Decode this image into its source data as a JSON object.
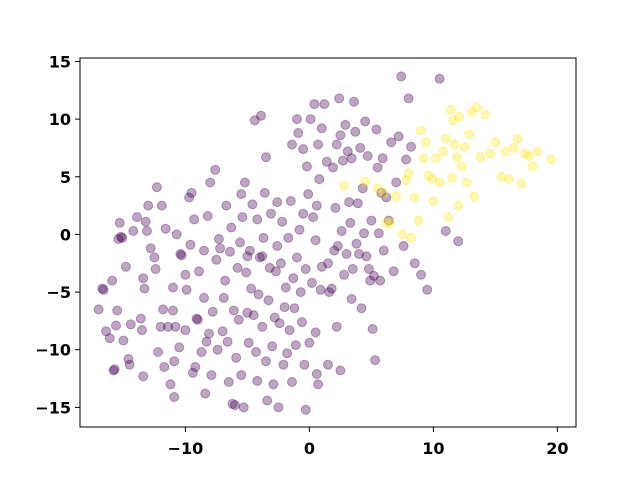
{
  "chart_data": {
    "type": "scatter",
    "title": "",
    "xlabel": "",
    "ylabel": "",
    "xlim": [
      -18.5,
      21.5
    ],
    "ylim": [
      -16.7,
      15.3
    ],
    "x_ticks": [
      -10,
      0,
      10,
      20
    ],
    "x_tick_labels": [
      "−10",
      "0",
      "10",
      "20"
    ],
    "y_ticks": [
      -15,
      -10,
      -5,
      0,
      5,
      10,
      15
    ],
    "y_tick_labels": [
      "−15",
      "−10",
      "−5",
      "0",
      "5",
      "10",
      "15"
    ],
    "grid": false,
    "legend": "none",
    "marker_alpha": 0.35,
    "colors": {
      "series_0": "#440154",
      "series_1": "#fde725",
      "axis": "#000000",
      "background": "#ffffff"
    },
    "series": [
      {
        "color": "#440154",
        "points": [
          [
            -17,
            -6.5
          ],
          [
            -16.7,
            -4.7
          ],
          [
            -16.6,
            -4.8
          ],
          [
            -16.4,
            -8.4
          ],
          [
            -16.1,
            -9.0
          ],
          [
            -15.9,
            -4.0
          ],
          [
            -15.8,
            -11.8
          ],
          [
            -15.7,
            -11.7
          ],
          [
            -15.6,
            -7.9
          ],
          [
            -15.5,
            -6.6
          ],
          [
            -15.4,
            -0.4
          ],
          [
            -15.3,
            1.0
          ],
          [
            -15.2,
            -0.2
          ],
          [
            -15.1,
            -0.3
          ],
          [
            -15.0,
            -9.2
          ],
          [
            -14.8,
            -2.8
          ],
          [
            -14.6,
            -10.8
          ],
          [
            -14.5,
            -11.3
          ],
          [
            -14.4,
            -7.8
          ],
          [
            -14.2,
            0.3
          ],
          [
            -13.9,
            1.5
          ],
          [
            -13.6,
            -7.3
          ],
          [
            -13.5,
            -8.3
          ],
          [
            -13.4,
            -12.3
          ],
          [
            -13.4,
            -3.8
          ],
          [
            -13.3,
            -4.7
          ],
          [
            -13.2,
            1.1
          ],
          [
            -13.1,
            0.3
          ],
          [
            -13.0,
            2.5
          ],
          [
            -12.8,
            -1.2
          ],
          [
            -12.5,
            -2.0
          ],
          [
            -12.4,
            -3.0
          ],
          [
            -12.3,
            4.1
          ],
          [
            -12.2,
            -10.2
          ],
          [
            -12.0,
            -8.0
          ],
          [
            -11.9,
            2.5
          ],
          [
            -11.8,
            -6.5
          ],
          [
            -11.7,
            -11.5
          ],
          [
            -11.6,
            0.5
          ],
          [
            -11.4,
            -8.0
          ],
          [
            -11.2,
            -13.0
          ],
          [
            -11.0,
            -6.6
          ],
          [
            -11.0,
            -4.6
          ],
          [
            -10.9,
            -14.1
          ],
          [
            -10.9,
            -11.0
          ],
          [
            -10.8,
            -8.0
          ],
          [
            -10.7,
            0.0
          ],
          [
            -10.5,
            -9.8
          ],
          [
            -10.4,
            -1.7
          ],
          [
            -10.3,
            -1.8
          ],
          [
            -10.0,
            -3.5
          ],
          [
            -10.0,
            -8.3
          ],
          [
            -9.9,
            -4.8
          ],
          [
            -9.7,
            3.2
          ],
          [
            -9.6,
            -0.9
          ],
          [
            -9.5,
            3.6
          ],
          [
            -9.4,
            -12.0
          ],
          [
            -9.3,
            1.3
          ],
          [
            -9.2,
            -11.5
          ],
          [
            -9.1,
            -7.3
          ],
          [
            -9.0,
            -7.4
          ],
          [
            -8.9,
            -3.2
          ],
          [
            -8.7,
            -10.2
          ],
          [
            -8.5,
            -1.4
          ],
          [
            -8.5,
            -5.5
          ],
          [
            -8.4,
            -13.8
          ],
          [
            -8.3,
            -9.3
          ],
          [
            -8.2,
            1.6
          ],
          [
            -8.1,
            -8.6
          ],
          [
            -8.0,
            4.5
          ],
          [
            -7.9,
            -12.2
          ],
          [
            -7.8,
            -6.7
          ],
          [
            -7.6,
            5.6
          ],
          [
            -7.5,
            -2.2
          ],
          [
            -7.4,
            -10.0
          ],
          [
            -7.3,
            -0.4
          ],
          [
            -7.2,
            -1.2
          ],
          [
            -7.0,
            -8.4
          ],
          [
            -6.9,
            -5.5
          ],
          [
            -6.8,
            -4.0
          ],
          [
            -6.7,
            2.5
          ],
          [
            -6.6,
            -9.3
          ],
          [
            -6.5,
            -12.8
          ],
          [
            -6.4,
            -1.5
          ],
          [
            -6.3,
            0.6
          ],
          [
            -6.2,
            -14.7
          ],
          [
            -6.1,
            -6.6
          ],
          [
            -6.0,
            -14.8
          ],
          [
            -5.9,
            -10.7
          ],
          [
            -5.8,
            -2.9
          ],
          [
            -5.7,
            -7.4
          ],
          [
            -5.6,
            -0.7
          ],
          [
            -5.5,
            3.5
          ],
          [
            -5.5,
            -12.2
          ],
          [
            -5.4,
            1.5
          ],
          [
            -5.3,
            -15.0
          ],
          [
            -5.2,
            4.5
          ],
          [
            -5.1,
            -3.3
          ],
          [
            -5.0,
            -1.9
          ],
          [
            -5.0,
            -6.8
          ],
          [
            -4.9,
            -9.4
          ],
          [
            -4.8,
            -1.4
          ],
          [
            -4.7,
            -4.7
          ],
          [
            -4.6,
            2.6
          ],
          [
            -4.5,
            -7.0
          ],
          [
            -4.4,
            9.9
          ],
          [
            -4.3,
            -10.2
          ],
          [
            -4.2,
            -12.7
          ],
          [
            -4.2,
            1.3
          ],
          [
            -4.1,
            -5.2
          ],
          [
            -4.0,
            -2.0
          ],
          [
            -3.9,
            10.3
          ],
          [
            -3.8,
            -8.0
          ],
          [
            -3.7,
            -0.3
          ],
          [
            -3.6,
            3.6
          ],
          [
            -3.5,
            6.7
          ],
          [
            -3.5,
            -11.0
          ],
          [
            -3.4,
            -14.4
          ],
          [
            -3.3,
            -5.7
          ],
          [
            -3.2,
            -2.9
          ],
          [
            -3.1,
            1.8
          ],
          [
            -3.0,
            -9.7
          ],
          [
            -2.9,
            -13.0
          ],
          [
            -2.8,
            -7.2
          ],
          [
            -2.7,
            -3.2
          ],
          [
            -2.6,
            -1.0
          ],
          [
            -2.6,
            2.8
          ],
          [
            -2.5,
            -15.0
          ],
          [
            -2.4,
            -7.7
          ],
          [
            -2.3,
            -2.5
          ],
          [
            -2.2,
            1.1
          ],
          [
            -2.1,
            -11.3
          ],
          [
            -2.0,
            -6.3
          ],
          [
            -1.9,
            -4.6
          ],
          [
            -1.8,
            -10.3
          ],
          [
            -1.7,
            -0.3
          ],
          [
            -1.6,
            -8.3
          ],
          [
            -1.5,
            2.9
          ],
          [
            -1.4,
            -12.8
          ],
          [
            -1.4,
            7.8
          ],
          [
            -1.3,
            -3.8
          ],
          [
            -1.2,
            -6.4
          ],
          [
            -1.1,
            -9.6
          ],
          [
            -1.0,
            10.0
          ],
          [
            -1.0,
            -2.0
          ],
          [
            -0.9,
            8.8
          ],
          [
            -0.8,
            0.4
          ],
          [
            -0.7,
            -5.0
          ],
          [
            -0.6,
            -7.6
          ],
          [
            -0.5,
            1.8
          ],
          [
            -0.5,
            7.4
          ],
          [
            -0.4,
            -11.3
          ],
          [
            -0.3,
            -15.2
          ],
          [
            -0.3,
            -3.0
          ],
          [
            -0.2,
            5.9
          ],
          [
            -0.1,
            3.5
          ],
          [
            0.0,
            -9.4
          ],
          [
            0.1,
            10.0
          ],
          [
            0.2,
            -4.2
          ],
          [
            0.3,
            1.5
          ],
          [
            0.4,
            11.3
          ],
          [
            0.5,
            -0.5
          ],
          [
            0.5,
            -8.5
          ],
          [
            0.6,
            -12.1
          ],
          [
            0.6,
            2.5
          ],
          [
            0.7,
            -13.0
          ],
          [
            0.7,
            7.8
          ],
          [
            0.8,
            4.8
          ],
          [
            0.9,
            -4.8
          ],
          [
            1.0,
            9.2
          ],
          [
            1.0,
            -2.8
          ],
          [
            1.2,
            11.3
          ],
          [
            1.4,
            6.3
          ],
          [
            1.5,
            -2.5
          ],
          [
            1.6,
            -5.0
          ],
          [
            1.8,
            -4.7
          ],
          [
            1.9,
            5.8
          ],
          [
            2.0,
            -1.4
          ],
          [
            2.1,
            2.3
          ],
          [
            2.2,
            7.8
          ],
          [
            2.2,
            -8.0
          ],
          [
            2.3,
            -1.0
          ],
          [
            2.4,
            11.8
          ],
          [
            2.5,
            8.6
          ],
          [
            2.5,
            -11.8
          ],
          [
            2.6,
            0.3
          ],
          [
            2.7,
            6.4
          ],
          [
            2.8,
            -3.5
          ],
          [
            2.9,
            9.5
          ],
          [
            3.0,
            -1.7
          ],
          [
            3.1,
            7.2
          ],
          [
            3.2,
            2.8
          ],
          [
            3.3,
            1.0
          ],
          [
            3.4,
            -5.6
          ],
          [
            3.4,
            6.6
          ],
          [
            3.5,
            -3.0
          ],
          [
            3.6,
            11.5
          ],
          [
            3.7,
            8.9
          ],
          [
            3.8,
            -0.8
          ],
          [
            3.9,
            2.7
          ],
          [
            4.0,
            -1.7
          ],
          [
            4.1,
            7.5
          ],
          [
            4.2,
            -6.4
          ],
          [
            4.3,
            4.0
          ],
          [
            4.4,
            0.1
          ],
          [
            4.5,
            9.8
          ],
          [
            4.6,
            -1.9
          ],
          [
            4.7,
            6.8
          ],
          [
            4.8,
            -3.0
          ],
          [
            4.9,
            -4.0
          ],
          [
            5.0,
            1.2
          ],
          [
            5.1,
            -8.2
          ],
          [
            5.2,
            -3.6
          ],
          [
            5.3,
            -10.9
          ],
          [
            5.4,
            9.1
          ],
          [
            5.5,
            5.8
          ],
          [
            5.6,
            0.1
          ],
          [
            5.7,
            -4.0
          ],
          [
            5.8,
            3.6
          ],
          [
            5.9,
            6.6
          ],
          [
            6.0,
            -1.4
          ],
          [
            6.2,
            3.2
          ],
          [
            6.4,
            1.2
          ],
          [
            6.6,
            8.0
          ],
          [
            6.8,
            -3.2
          ],
          [
            7.0,
            4.5
          ],
          [
            7.2,
            8.5
          ],
          [
            7.4,
            13.7
          ],
          [
            7.6,
            -1.0
          ],
          [
            7.8,
            6.5
          ],
          [
            8.0,
            11.8
          ],
          [
            8.2,
            7.6
          ],
          [
            8.5,
            -2.5
          ],
          [
            9.0,
            -3.5
          ],
          [
            9.5,
            -4.8
          ],
          [
            10.5,
            13.5
          ],
          [
            11.0,
            0.3
          ],
          [
            12.0,
            -0.6
          ],
          [
            -3.8,
            -1.9
          ],
          [
            1.5,
            -11.3
          ]
        ]
      },
      {
        "color": "#fde725",
        "points": [
          [
            2.8,
            4.2
          ],
          [
            4.5,
            4.6
          ],
          [
            5.5,
            4.0
          ],
          [
            6.0,
            3.6
          ],
          [
            6.2,
            1.0
          ],
          [
            6.5,
            1.0
          ],
          [
            7.0,
            3.3
          ],
          [
            7.5,
            0.0
          ],
          [
            7.8,
            4.7
          ],
          [
            8.0,
            5.3
          ],
          [
            8.2,
            -0.3
          ],
          [
            8.5,
            3.2
          ],
          [
            8.8,
            1.2
          ],
          [
            9.0,
            9.0
          ],
          [
            9.2,
            6.6
          ],
          [
            9.4,
            8.0
          ],
          [
            9.6,
            5.1
          ],
          [
            9.9,
            4.8
          ],
          [
            10.2,
            6.6
          ],
          [
            10.5,
            4.5
          ],
          [
            10.8,
            7.2
          ],
          [
            11.0,
            8.3
          ],
          [
            11.2,
            1.5
          ],
          [
            11.4,
            10.8
          ],
          [
            11.5,
            4.9
          ],
          [
            11.7,
            7.8
          ],
          [
            11.9,
            6.7
          ],
          [
            12.1,
            10.2
          ],
          [
            12.3,
            5.9
          ],
          [
            12.5,
            7.6
          ],
          [
            12.7,
            4.5
          ],
          [
            12.9,
            8.7
          ],
          [
            13.1,
            10.6
          ],
          [
            13.3,
            3.3
          ],
          [
            13.5,
            11.0
          ],
          [
            13.8,
            6.7
          ],
          [
            14.2,
            10.4
          ],
          [
            14.6,
            7.0
          ],
          [
            15.0,
            8.0
          ],
          [
            15.5,
            5.0
          ],
          [
            15.8,
            7.2
          ],
          [
            16.1,
            4.8
          ],
          [
            16.5,
            7.5
          ],
          [
            16.8,
            8.3
          ],
          [
            17.1,
            4.4
          ],
          [
            17.4,
            7.0
          ],
          [
            17.7,
            6.8
          ],
          [
            18.0,
            5.9
          ],
          [
            18.4,
            7.2
          ],
          [
            19.5,
            6.5
          ],
          [
            11.6,
            9.9
          ],
          [
            10.0,
            2.9
          ],
          [
            12.0,
            2.5
          ]
        ]
      }
    ]
  }
}
